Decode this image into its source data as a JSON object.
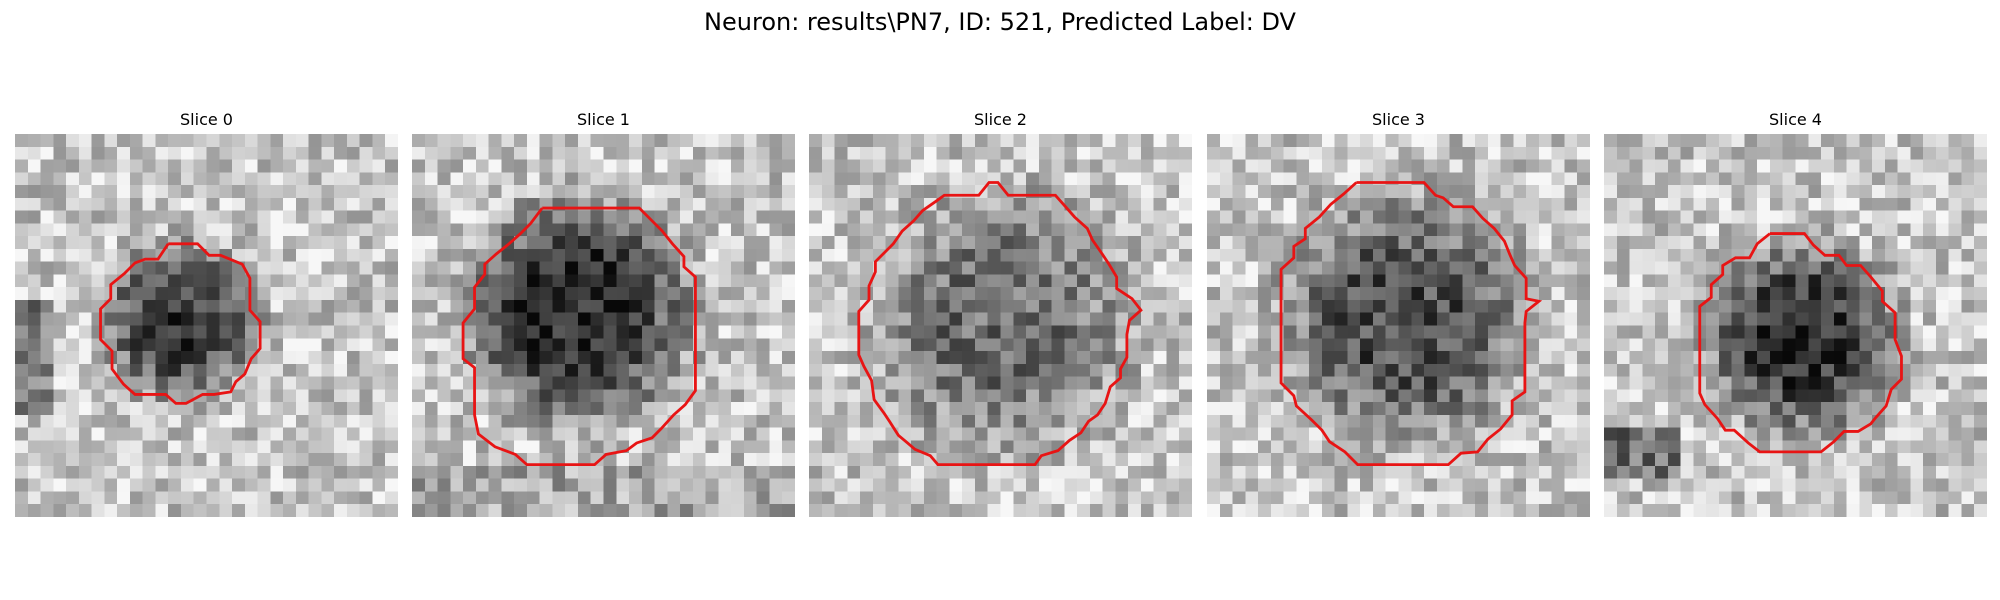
{
  "figure": {
    "title": "Neuron: results\\PN7, ID: 521, Predicted Label: DV"
  },
  "colors": {
    "contour": "#e81414",
    "background": "#ffffff"
  },
  "panels": [
    {
      "title": "Slice 0"
    },
    {
      "title": "Slice 1"
    },
    {
      "title": "Slice 2"
    },
    {
      "title": "Slice 3"
    },
    {
      "title": "Slice 4"
    }
  ]
}
